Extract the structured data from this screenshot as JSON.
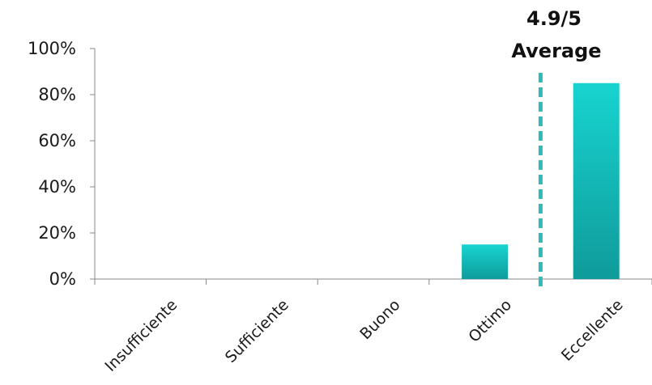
{
  "chart_data": {
    "type": "bar",
    "title": "",
    "xlabel": "",
    "ylabel": "",
    "categories": [
      "Insufficiente",
      "Sufficiente",
      "Buono",
      "Ottimo",
      "Eccellente"
    ],
    "values": [
      0,
      0,
      0,
      15,
      85
    ],
    "ylim": [
      0,
      100
    ],
    "yticks": [
      0,
      20,
      40,
      60,
      80,
      100
    ],
    "ytick_labels": [
      "0%",
      "20%",
      "40%",
      "60%",
      "80%",
      "100%"
    ],
    "grid": false,
    "legend": "none",
    "bar_color_top": "#17d4d0",
    "bar_color_bottom": "#0f9b9a",
    "average": {
      "value": 4.9,
      "scale_max": 5,
      "line_label": "4.9/5",
      "line_sublabel": "Average",
      "line_color": "#35b9b6"
    }
  }
}
